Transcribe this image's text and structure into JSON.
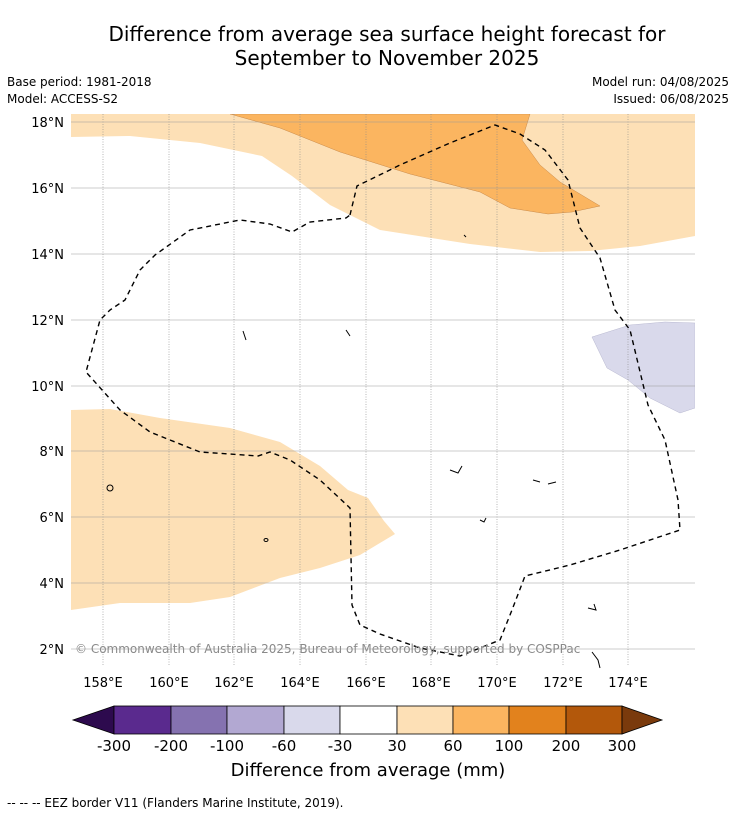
{
  "title": {
    "line1": "Difference from average sea surface height forecast for",
    "line2": "September to November 2025"
  },
  "meta": {
    "base_period": "Base period: 1981-2018",
    "model": "Model: ACCESS-S2",
    "model_run": "Model run: 04/08/2025",
    "issued": "Issued: 06/08/2025"
  },
  "copyright": "© Commonwealth of Australia 2025, Bureau of Meteorology, supported by COSPPac",
  "map": {
    "lat_labels": [
      "18°N",
      "16°N",
      "14°N",
      "12°N",
      "10°N",
      "8°N",
      "6°N",
      "4°N",
      "2°N"
    ],
    "lon_labels": [
      "158°E",
      "160°E",
      "162°E",
      "164°E",
      "166°E",
      "168°E",
      "170°E",
      "172°E",
      "174°E"
    ]
  },
  "colorbar": {
    "title": "Difference from average (mm)",
    "tick_labels": [
      "-300",
      "-200",
      "-100",
      "-60",
      "-30",
      "30",
      "60",
      "100",
      "200",
      "300"
    ],
    "colors": {
      "below": "#2d0a4e",
      "c1": "#5a2a8e",
      "c2": "#8572b0",
      "c3": "#b2a8d2",
      "c4": "#d9d9eb",
      "c5": "#ffffff",
      "c6": "#fde0b6",
      "c7": "#fbb560",
      "c8": "#e2821d",
      "c9": "#b3580b",
      "above": "#7a3a0c"
    }
  },
  "legend_note": "--  --  -- EEZ border V11 (Flanders Marine Institute, 2019)."
}
